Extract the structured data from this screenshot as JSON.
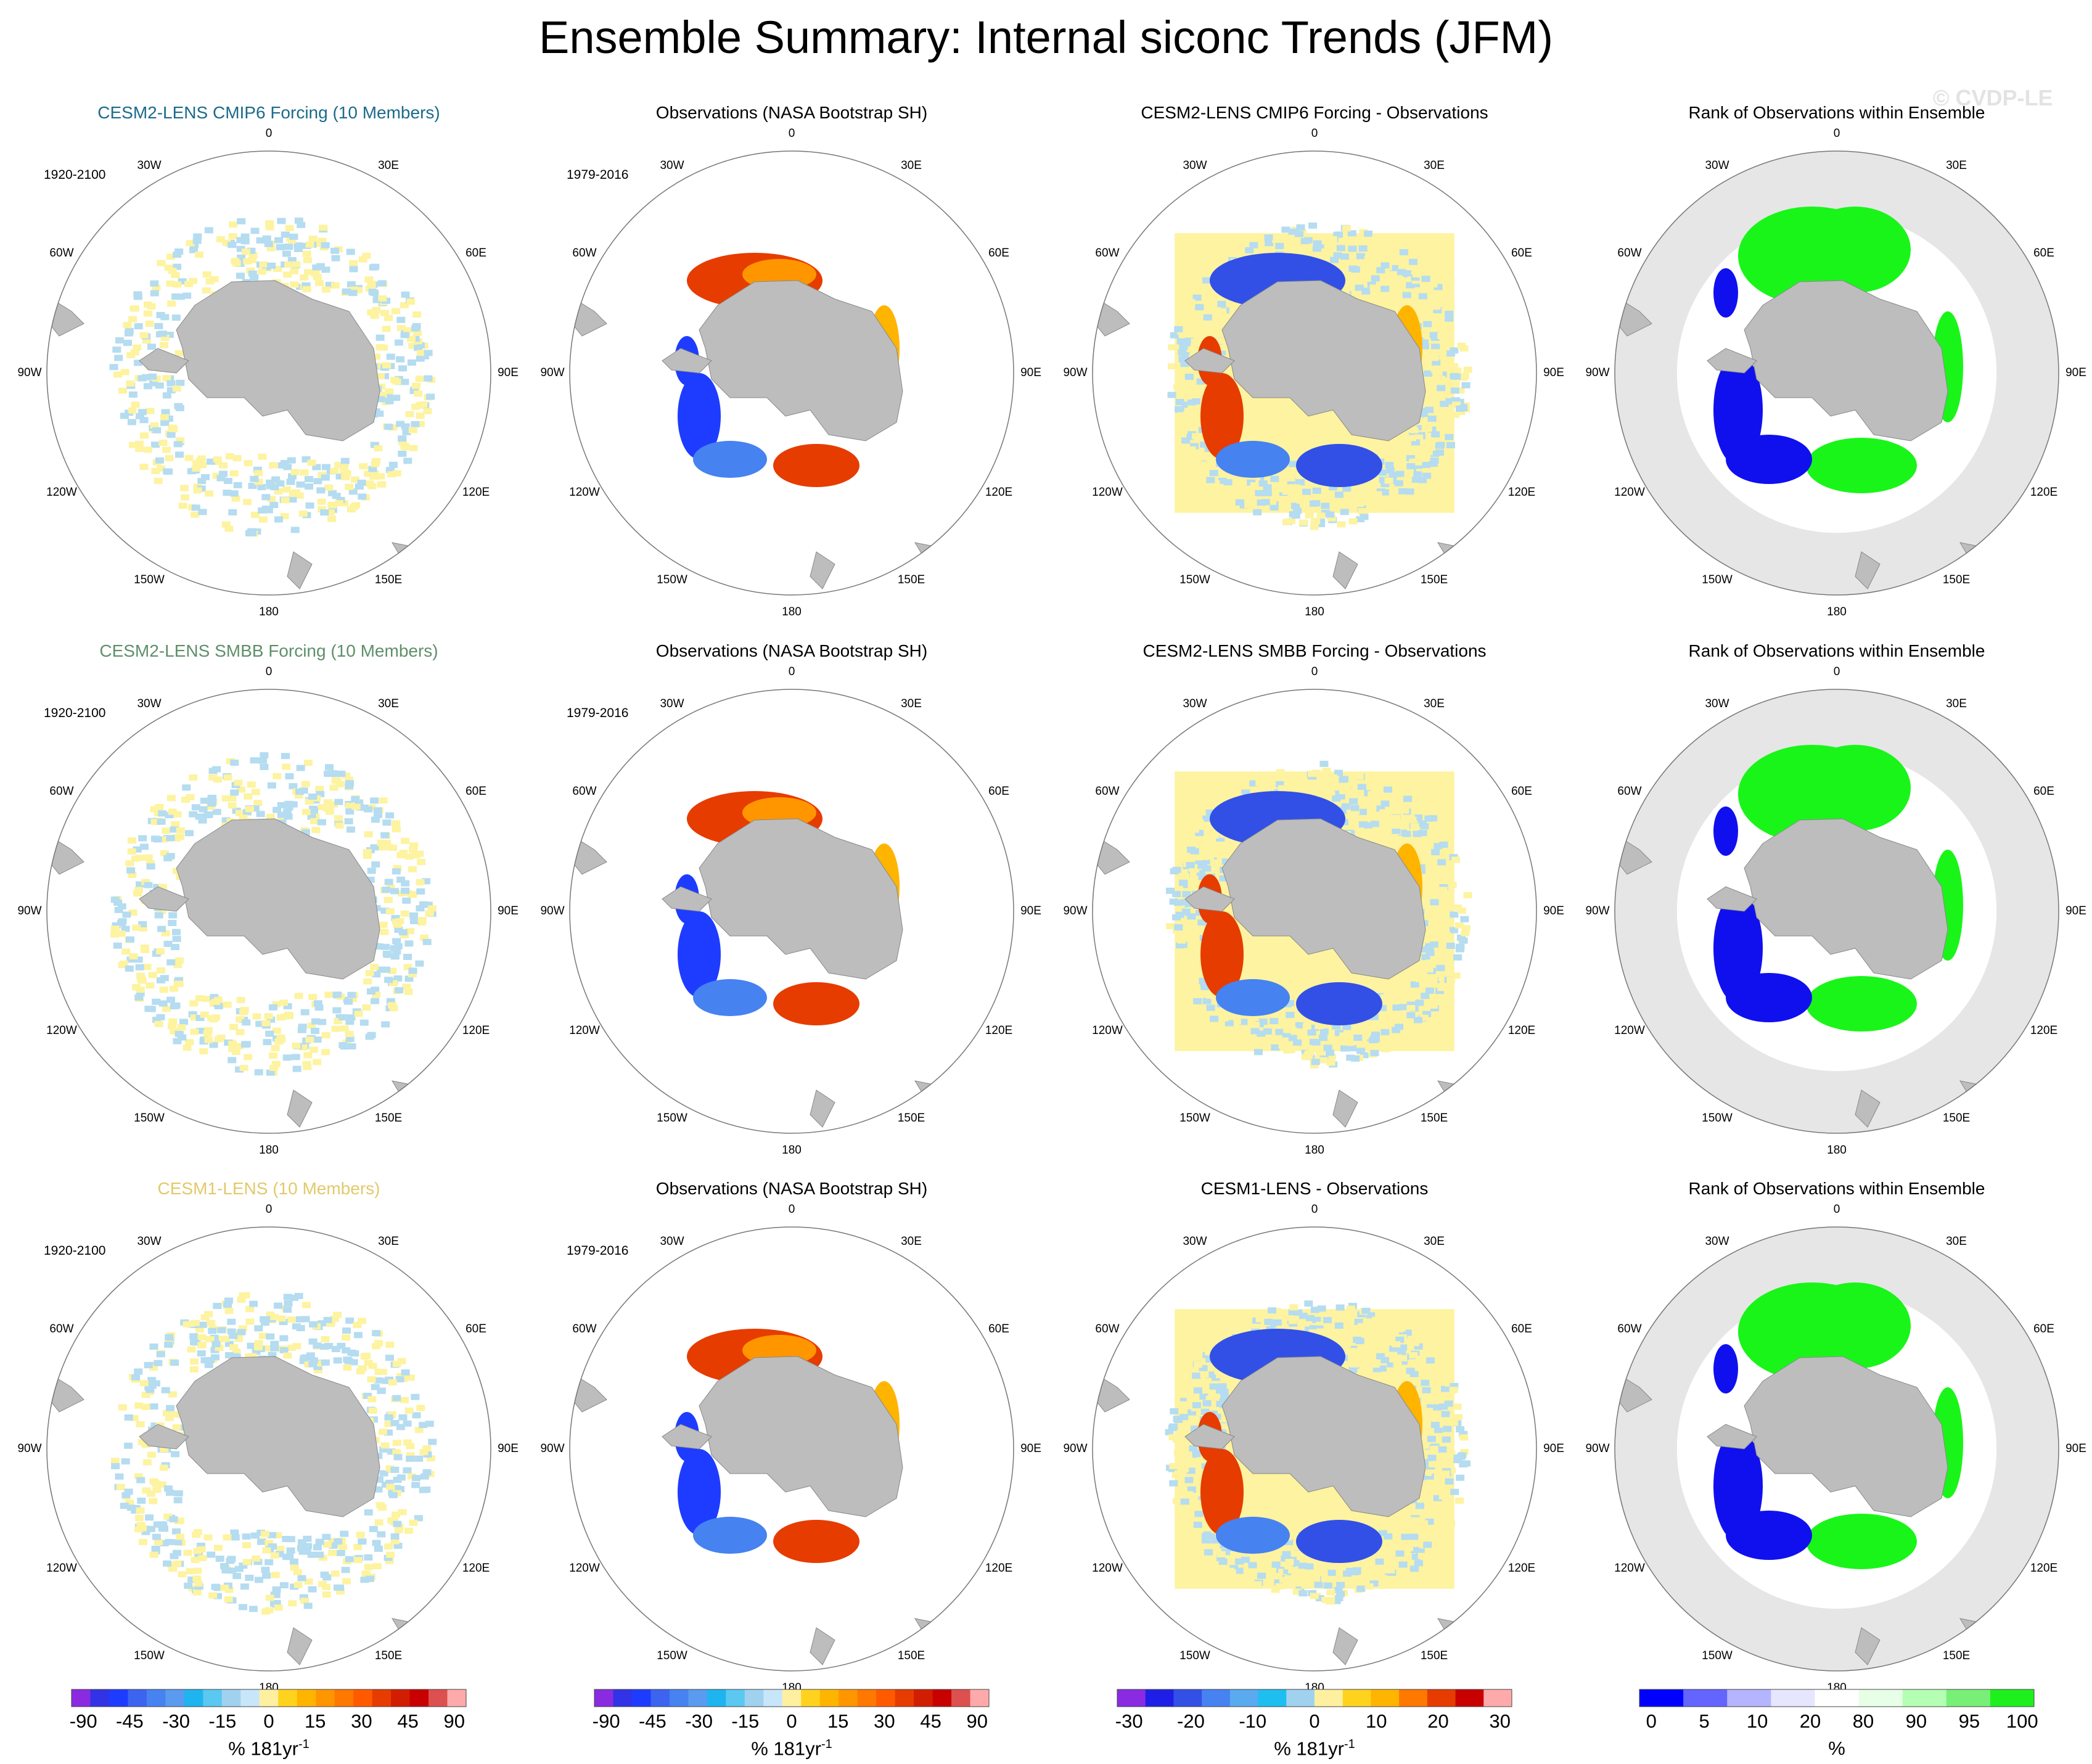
{
  "title": "Ensemble Summary: Internal siconc Trends (JFM)",
  "watermark": "© CVDP-LE",
  "lon_labels": [
    "0",
    "30E",
    "60E",
    "90E",
    "120E",
    "150E",
    "180",
    "150W",
    "120W",
    "90W",
    "60W",
    "30W"
  ],
  "colors": {
    "land": "#bdbdbd",
    "model_light_blue": "#b5dcf0",
    "model_light_yellow": "#fdf3a0",
    "rank_ocean": "#e6e6e6",
    "rank_white": "#ffffff",
    "rank_green": "#19f519",
    "rank_blue": "#1010ee",
    "title_row1": "#1b6b8a",
    "title_row2": "#5f8f6a",
    "title_row3": "#e2c96a"
  },
  "rows": [
    {
      "model_title": "CESM2-LENS CMIP6 Forcing (10 Members)",
      "model_period": "1920-2100",
      "obs_title": "Observations (NASA Bootstrap SH)",
      "obs_period": "1979-2016",
      "diff_title": "CESM2-LENS CMIP6 Forcing - Observations",
      "rank_title": "Rank of Observations within Ensemble"
    },
    {
      "model_title": "CESM2-LENS SMBB Forcing (10 Members)",
      "model_period": "1920-2100",
      "obs_title": "Observations (NASA Bootstrap SH)",
      "obs_period": "1979-2016",
      "diff_title": "CESM2-LENS SMBB Forcing - Observations",
      "rank_title": "Rank of Observations within Ensemble"
    },
    {
      "model_title": "CESM1-LENS (10 Members)",
      "model_period": "1920-2100",
      "obs_title": "Observations (NASA Bootstrap SH)",
      "obs_period": "1979-2016",
      "diff_title": "CESM1-LENS - Observations",
      "rank_title": "Rank of Observations within Ensemble"
    }
  ],
  "colorbars": {
    "trend": {
      "colors": [
        "#8a2be2",
        "#3232e6",
        "#1e3cff",
        "#3c64f0",
        "#4682f0",
        "#5a9bf0",
        "#1eb4f0",
        "#5ac8f0",
        "#a0d2f0",
        "#c8e6fa",
        "#fff0a0",
        "#ffd21e",
        "#ffb400",
        "#ff9600",
        "#ff7800",
        "#ff5a00",
        "#e63c00",
        "#d21e00",
        "#c80000",
        "#dc5050",
        "#ffaaaa"
      ],
      "ticks": [
        "-90",
        "-45",
        "-30",
        "-15",
        "0",
        "15",
        "30",
        "45",
        "90"
      ],
      "unit": "% 181yr",
      "unit_exp": "-1"
    },
    "obs": {
      "colors": [
        "#8a2be2",
        "#3232e6",
        "#1e3cff",
        "#3c64f0",
        "#4682f0",
        "#5a9bf0",
        "#1eb4f0",
        "#5ac8f0",
        "#a0d2f0",
        "#c8e6fa",
        "#fff0a0",
        "#ffd21e",
        "#ffb400",
        "#ff9600",
        "#ff7800",
        "#ff5a00",
        "#e63c00",
        "#d21e00",
        "#c80000",
        "#dc5050",
        "#ffaaaa"
      ],
      "ticks": [
        "-90",
        "-45",
        "-30",
        "-15",
        "0",
        "15",
        "30",
        "45",
        "90"
      ],
      "unit": "% 181yr",
      "unit_exp": "-1"
    },
    "diff": {
      "colors": [
        "#8a2be2",
        "#1e1ee6",
        "#3250e6",
        "#4682f0",
        "#5aaaf0",
        "#1ebef0",
        "#a0d2f0",
        "#fff0a0",
        "#ffd21e",
        "#ffb400",
        "#ff7800",
        "#e63c00",
        "#c80000",
        "#ffaaaa"
      ],
      "ticks": [
        "-30",
        "-20",
        "-10",
        "0",
        "10",
        "20",
        "30"
      ],
      "unit": "% 181yr",
      "unit_exp": "-1"
    },
    "rank": {
      "colors": [
        "#0000ff",
        "#6464ff",
        "#b4b4ff",
        "#e6e6ff",
        "#ffffff",
        "#e6ffe6",
        "#b4ffb4",
        "#78f078",
        "#1ef01e"
      ],
      "ticks": [
        "0",
        "5",
        "10",
        "20",
        "80",
        "90",
        "95",
        "100"
      ],
      "unit": "%",
      "unit_exp": ""
    }
  }
}
